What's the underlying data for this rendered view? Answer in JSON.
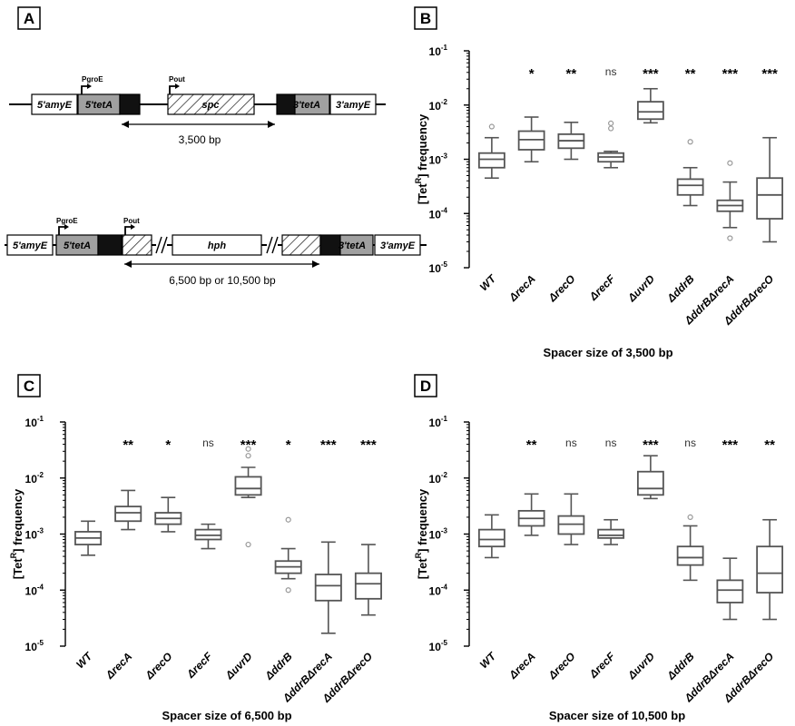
{
  "panels": {
    "A": "A",
    "B": "B",
    "C": "C",
    "D": "D"
  },
  "schematic": {
    "promoter_groE": "PgroE",
    "promoter_out": "Pout",
    "gene_5amyE": "5'amyE",
    "gene_5tetA": "5'tetA",
    "gene_spc": "spc",
    "gene_3tetA": "3'tetA",
    "gene_3amyE": "3'amyE",
    "gene_hph": "hph",
    "spacer_top": "3,500 bp",
    "spacer_bottom": "6,500 bp or 10,500 bp"
  },
  "colors": {
    "box_stroke": "#555555",
    "outlier": "#999999",
    "tet_gray": "#a0a0a0",
    "tet_black": "#111111"
  },
  "chart_data": [
    {
      "panel": "B",
      "type": "box",
      "title": "Spacer size of 3,500 bp",
      "ylabel": "[TetR] frequency",
      "yscale": "log",
      "ylim": [
        1e-05,
        0.1
      ],
      "yticks": [
        "10-5",
        "10-4",
        "10-3",
        "10-2",
        "10-1"
      ],
      "categories": [
        "WT",
        "ΔrecA",
        "ΔrecO",
        "ΔrecF",
        "ΔuvrD",
        "ΔddrB",
        "ΔddrBΔrecA",
        "ΔddrBΔrecO"
      ],
      "significance": [
        "",
        "*",
        "**",
        "ns",
        "***",
        "**",
        "***",
        "***"
      ],
      "boxes": [
        {
          "min": 0.00045,
          "q1": 0.0007,
          "median": 0.001,
          "q3": 0.0013,
          "max": 0.0025,
          "outliers": [
            0.004
          ]
        },
        {
          "min": 0.0009,
          "q1": 0.0015,
          "median": 0.0023,
          "q3": 0.0033,
          "max": 0.006,
          "outliers": []
        },
        {
          "min": 0.001,
          "q1": 0.0016,
          "median": 0.0022,
          "q3": 0.0029,
          "max": 0.0048,
          "outliers": []
        },
        {
          "min": 0.0007,
          "q1": 0.0009,
          "median": 0.0011,
          "q3": 0.0013,
          "max": 0.0014,
          "outliers": [
            0.0037,
            0.0046
          ]
        },
        {
          "min": 0.0047,
          "q1": 0.0055,
          "median": 0.0075,
          "q3": 0.0115,
          "max": 0.02,
          "outliers": []
        },
        {
          "min": 0.00014,
          "q1": 0.00022,
          "median": 0.00033,
          "q3": 0.00043,
          "max": 0.0007,
          "outliers": [
            0.0021
          ]
        },
        {
          "min": 5.5e-05,
          "q1": 0.00011,
          "median": 0.00014,
          "q3": 0.000175,
          "max": 0.00038,
          "outliers": [
            0.00085,
            3.5e-05
          ]
        },
        {
          "min": 3e-05,
          "q1": 8e-05,
          "median": 0.00022,
          "q3": 0.00045,
          "max": 0.0025,
          "outliers": []
        }
      ]
    },
    {
      "panel": "C",
      "type": "box",
      "title": "Spacer size of 6,500 bp",
      "ylabel": "[TetR] frequency",
      "yscale": "log",
      "ylim": [
        1e-05,
        0.1
      ],
      "yticks": [
        "10-5",
        "10-4",
        "10-3",
        "10-2",
        "10-1"
      ],
      "categories": [
        "WT",
        "ΔrecA",
        "ΔrecO",
        "ΔrecF",
        "ΔuvrD",
        "ΔddrB",
        "ΔddrBΔrecA",
        "ΔddrBΔrecO"
      ],
      "significance": [
        "",
        "**",
        "*",
        "ns",
        "***",
        "*",
        "***",
        "***"
      ],
      "boxes": [
        {
          "min": 0.00042,
          "q1": 0.00065,
          "median": 0.00085,
          "q3": 0.0011,
          "max": 0.0017,
          "outliers": []
        },
        {
          "min": 0.0012,
          "q1": 0.0017,
          "median": 0.0024,
          "q3": 0.0031,
          "max": 0.006,
          "outliers": []
        },
        {
          "min": 0.0011,
          "q1": 0.0015,
          "median": 0.0019,
          "q3": 0.0024,
          "max": 0.0045,
          "outliers": []
        },
        {
          "min": 0.00055,
          "q1": 0.0008,
          "median": 0.00095,
          "q3": 0.0012,
          "max": 0.0015,
          "outliers": []
        },
        {
          "min": 0.0045,
          "q1": 0.005,
          "median": 0.0065,
          "q3": 0.0105,
          "max": 0.0155,
          "outliers": [
            0.033,
            0.025,
            0.00065
          ]
        },
        {
          "min": 0.00016,
          "q1": 0.0002,
          "median": 0.00026,
          "q3": 0.00033,
          "max": 0.00055,
          "outliers": [
            0.0018,
            0.0001
          ]
        },
        {
          "min": 1.7e-05,
          "q1": 6.5e-05,
          "median": 0.00012,
          "q3": 0.00019,
          "max": 0.00072,
          "outliers": []
        },
        {
          "min": 3.6e-05,
          "q1": 7e-05,
          "median": 0.00013,
          "q3": 0.0002,
          "max": 0.00065,
          "outliers": []
        }
      ]
    },
    {
      "panel": "D",
      "type": "box",
      "title": "Spacer size of 10,500 bp",
      "ylabel": "[TetR] frequency",
      "yscale": "log",
      "ylim": [
        1e-05,
        0.1
      ],
      "yticks": [
        "10-5",
        "10-4",
        "10-3",
        "10-2",
        "10-1"
      ],
      "categories": [
        "WT",
        "ΔrecA",
        "ΔrecO",
        "ΔrecF",
        "ΔuvrD",
        "ΔddrB",
        "ΔddrBΔrecA",
        "ΔddrBΔrecO"
      ],
      "significance": [
        "",
        "**",
        "ns",
        "ns",
        "***",
        "ns",
        "***",
        "**"
      ],
      "boxes": [
        {
          "min": 0.00038,
          "q1": 0.0006,
          "median": 0.0008,
          "q3": 0.0012,
          "max": 0.0022,
          "outliers": []
        },
        {
          "min": 0.00095,
          "q1": 0.0014,
          "median": 0.0019,
          "q3": 0.0026,
          "max": 0.0052,
          "outliers": []
        },
        {
          "min": 0.00065,
          "q1": 0.001,
          "median": 0.0015,
          "q3": 0.0021,
          "max": 0.0052,
          "outliers": []
        },
        {
          "min": 0.00065,
          "q1": 0.00085,
          "median": 0.00095,
          "q3": 0.0012,
          "max": 0.0018,
          "outliers": []
        },
        {
          "min": 0.0043,
          "q1": 0.005,
          "median": 0.0065,
          "q3": 0.013,
          "max": 0.025,
          "outliers": []
        },
        {
          "min": 0.00015,
          "q1": 0.00028,
          "median": 0.00038,
          "q3": 0.0006,
          "max": 0.0014,
          "outliers": [
            0.002
          ]
        },
        {
          "min": 3e-05,
          "q1": 6e-05,
          "median": 0.0001,
          "q3": 0.00015,
          "max": 0.00037,
          "outliers": []
        },
        {
          "min": 3e-05,
          "q1": 9e-05,
          "median": 0.0002,
          "q3": 0.0006,
          "max": 0.0018,
          "outliers": []
        }
      ]
    }
  ]
}
